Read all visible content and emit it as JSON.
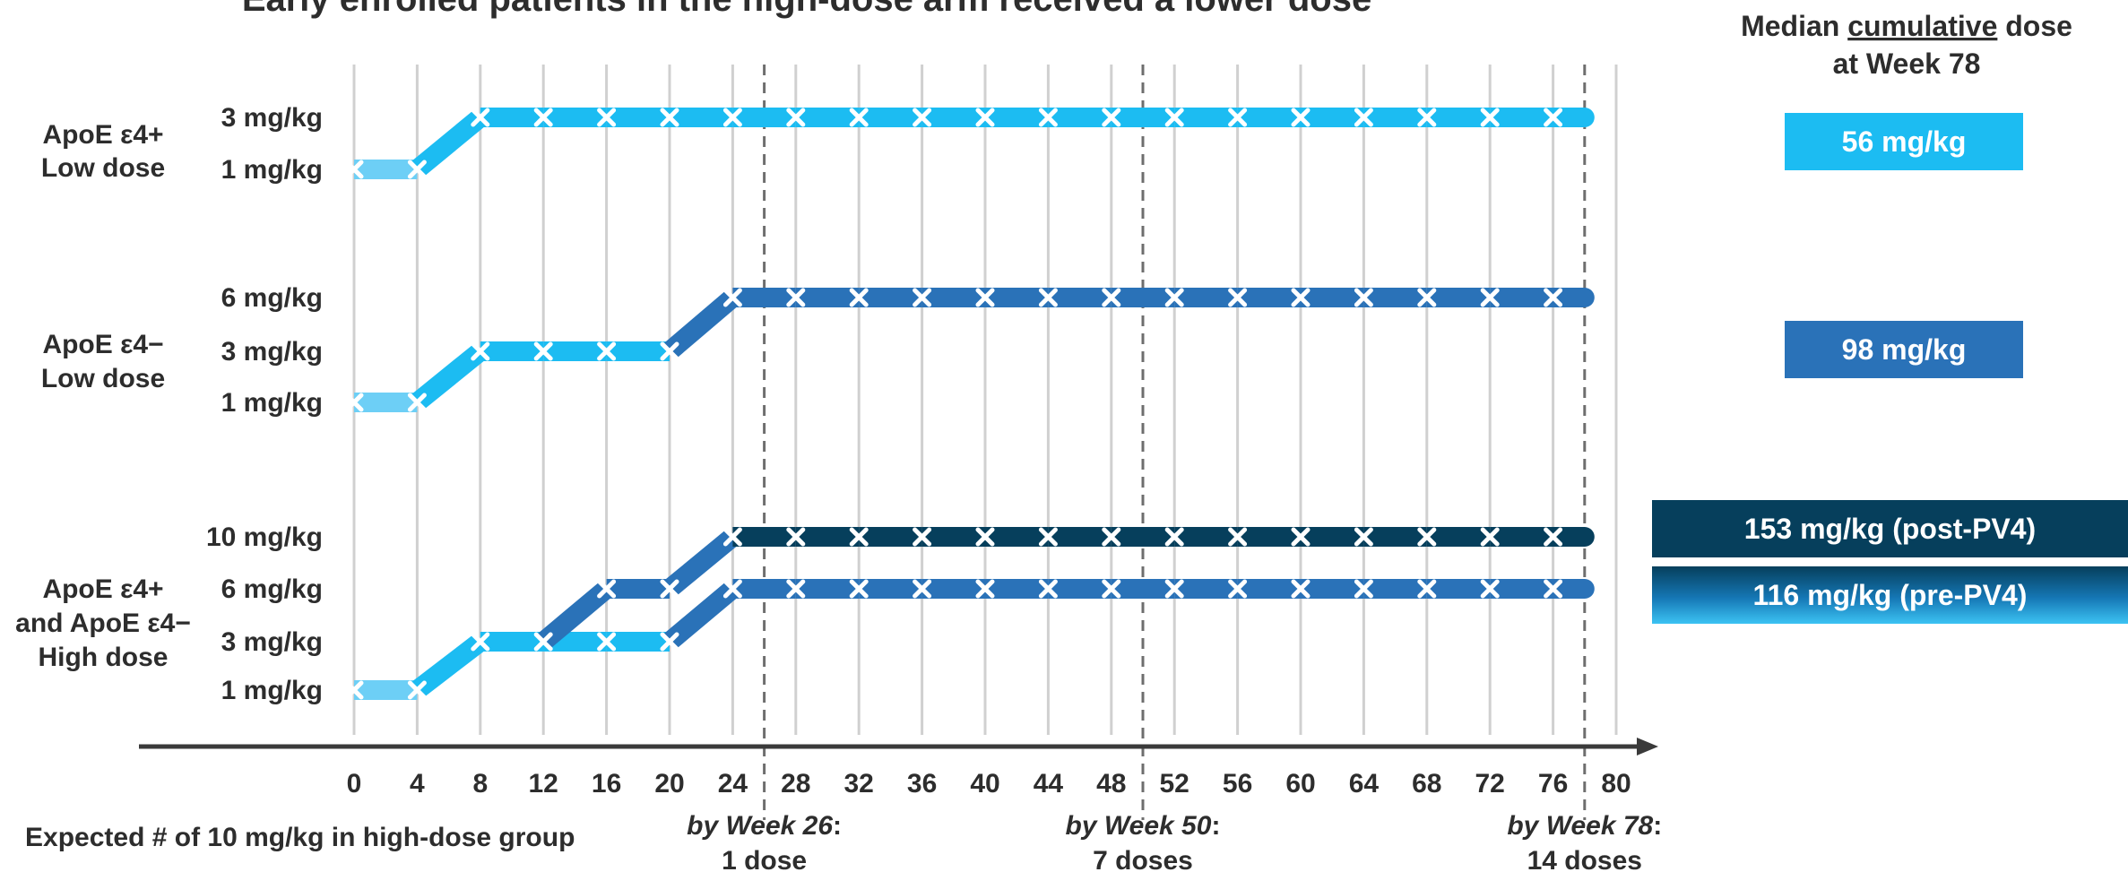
{
  "chart_data": {
    "type": "line",
    "title": "Early enrolled patients in the high-dose arm received a lower dose",
    "x_ticks": [
      0,
      4,
      8,
      12,
      16,
      20,
      24,
      28,
      32,
      36,
      40,
      44,
      48,
      52,
      56,
      60,
      64,
      68,
      72,
      76,
      80
    ],
    "xlim": [
      0,
      80
    ],
    "grid": true,
    "reference_lines": [
      26,
      50,
      78
    ],
    "groups": [
      {
        "label_line1": "ApoE ε4+",
        "label_line2": "Low dose",
        "label_line3": "",
        "dose_levels": [
          {
            "value": 3,
            "label": "3 mg/kg"
          },
          {
            "value": 1,
            "label": "1 mg/kg"
          }
        ],
        "series": [
          {
            "color": "#1cbcf2",
            "points": [
              [
                0,
                1
              ],
              [
                4,
                1
              ],
              [
                8,
                3
              ],
              [
                12,
                3
              ],
              [
                16,
                3
              ],
              [
                20,
                3
              ],
              [
                24,
                3
              ],
              [
                28,
                3
              ],
              [
                32,
                3
              ],
              [
                36,
                3
              ],
              [
                40,
                3
              ],
              [
                44,
                3
              ],
              [
                48,
                3
              ],
              [
                52,
                3
              ],
              [
                56,
                3
              ],
              [
                60,
                3
              ],
              [
                64,
                3
              ],
              [
                68,
                3
              ],
              [
                72,
                3
              ],
              [
                76,
                3
              ]
            ],
            "end_week": 78
          }
        ]
      },
      {
        "label_line1": "ApoE ε4−",
        "label_line2": "Low dose",
        "label_line3": "",
        "dose_levels": [
          {
            "value": 6,
            "label": "6 mg/kg"
          },
          {
            "value": 3,
            "label": "3 mg/kg"
          },
          {
            "value": 1,
            "label": "1 mg/kg"
          }
        ],
        "series": [
          {
            "color": "#2a72b8",
            "points": [
              [
                0,
                1
              ],
              [
                4,
                1
              ],
              [
                8,
                3
              ],
              [
                12,
                3
              ],
              [
                16,
                3
              ],
              [
                20,
                3
              ],
              [
                24,
                6
              ],
              [
                28,
                6
              ],
              [
                32,
                6
              ],
              [
                36,
                6
              ],
              [
                40,
                6
              ],
              [
                44,
                6
              ],
              [
                48,
                6
              ],
              [
                52,
                6
              ],
              [
                56,
                6
              ],
              [
                60,
                6
              ],
              [
                64,
                6
              ],
              [
                68,
                6
              ],
              [
                72,
                6
              ],
              [
                76,
                6
              ]
            ],
            "end_week": 78
          }
        ]
      },
      {
        "label_line1": "ApoE ε4+",
        "label_line2": "and ApoE ε4−",
        "label_line3": "High dose",
        "dose_levels": [
          {
            "value": 10,
            "label": "10 mg/kg"
          },
          {
            "value": 6,
            "label": "6 mg/kg"
          },
          {
            "value": 3,
            "label": "3 mg/kg"
          },
          {
            "value": 1,
            "label": "1 mg/kg"
          }
        ],
        "series": [
          {
            "color": "#2a72b8",
            "points": [
              [
                0,
                1
              ],
              [
                4,
                1
              ],
              [
                8,
                3
              ],
              [
                16,
                3
              ],
              [
                20,
                3
              ],
              [
                24,
                6
              ],
              [
                28,
                6
              ],
              [
                32,
                6
              ],
              [
                36,
                6
              ],
              [
                40,
                6
              ],
              [
                44,
                6
              ],
              [
                48,
                6
              ],
              [
                52,
                6
              ],
              [
                56,
                6
              ],
              [
                60,
                6
              ],
              [
                64,
                6
              ],
              [
                68,
                6
              ],
              [
                72,
                6
              ],
              [
                76,
                6
              ]
            ],
            "end_week": 78
          },
          {
            "color": "#063f5c",
            "points": [
              [
                12,
                3
              ],
              [
                16,
                6
              ],
              [
                20,
                6
              ],
              [
                24,
                10
              ],
              [
                28,
                10
              ],
              [
                32,
                10
              ],
              [
                36,
                10
              ],
              [
                40,
                10
              ],
              [
                44,
                10
              ],
              [
                48,
                10
              ],
              [
                52,
                10
              ],
              [
                56,
                10
              ],
              [
                60,
                10
              ],
              [
                64,
                10
              ],
              [
                68,
                10
              ],
              [
                72,
                10
              ],
              [
                76,
                10
              ]
            ],
            "end_week": 78
          }
        ]
      }
    ],
    "bottom_label": "Expected # of 10 mg/kg in high-dose group",
    "milestones": [
      {
        "week": 26,
        "prefix": "by Week 26",
        "suffix": ":",
        "count": "1 dose"
      },
      {
        "week": 50,
        "prefix": "by Week 50",
        "suffix": ":",
        "count": "7 doses"
      },
      {
        "week": 78,
        "prefix": "by Week 78",
        "suffix": ":",
        "count": "14 doses"
      }
    ],
    "cumulative_header": {
      "pre": "Median ",
      "underlined": "cumulative",
      "post": " dose",
      "line2": "at Week 78"
    },
    "cumulative_boxes": [
      {
        "label": "56 mg/kg",
        "color": "#1cbcf2"
      },
      {
        "label": "98 mg/kg",
        "color": "#2a72b8"
      },
      {
        "label": "153 mg/kg (post-PV4)",
        "color": "#063f5c"
      },
      {
        "label": "116 mg/kg (pre-PV4)",
        "color": "#0b6fa3"
      }
    ],
    "colors": {
      "light": "#6dcff6",
      "mid": "#1cbcf2",
      "blue": "#2a72b8",
      "dark": "#063f5c",
      "grid": "#d0d0d0",
      "text": "#2d2d2d"
    }
  }
}
